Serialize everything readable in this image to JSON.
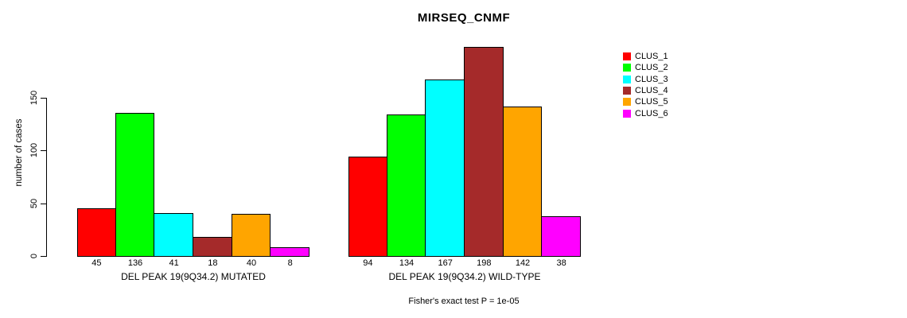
{
  "title": "MIRSEQ_CNMF",
  "footer": "Fisher's exact test P = 1e-05",
  "chart_data": {
    "type": "bar",
    "title": "MIRSEQ_CNMF",
    "ylabel": "number of cases",
    "ylim": [
      0,
      200
    ],
    "yticks": [
      0,
      50,
      100,
      150
    ],
    "grid": false,
    "legend_position": "right",
    "legend": [
      {
        "label": "CLUS_1",
        "color": "#ff0000"
      },
      {
        "label": "CLUS_2",
        "color": "#00ff00"
      },
      {
        "label": "CLUS_3",
        "color": "#00ffff"
      },
      {
        "label": "CLUS_4",
        "color": "#a52a2a"
      },
      {
        "label": "CLUS_5",
        "color": "#ffa500"
      },
      {
        "label": "CLUS_6",
        "color": "#ff00ff"
      }
    ],
    "groups": [
      {
        "label": "DEL PEAK 19(9Q34.2) MUTATED",
        "series": [
          "CLUS_1",
          "CLUS_2",
          "CLUS_3",
          "CLUS_4",
          "CLUS_5",
          "CLUS_6"
        ],
        "values": [
          45,
          136,
          41,
          18,
          40,
          8
        ]
      },
      {
        "label": "DEL PEAK 19(9Q34.2) WILD-TYPE",
        "series": [
          "CLUS_1",
          "CLUS_2",
          "CLUS_3",
          "CLUS_4",
          "CLUS_5",
          "CLUS_6"
        ],
        "values": [
          94,
          134,
          167,
          198,
          142,
          38
        ]
      }
    ],
    "annotation": "Fisher's exact test P = 1e-05"
  }
}
